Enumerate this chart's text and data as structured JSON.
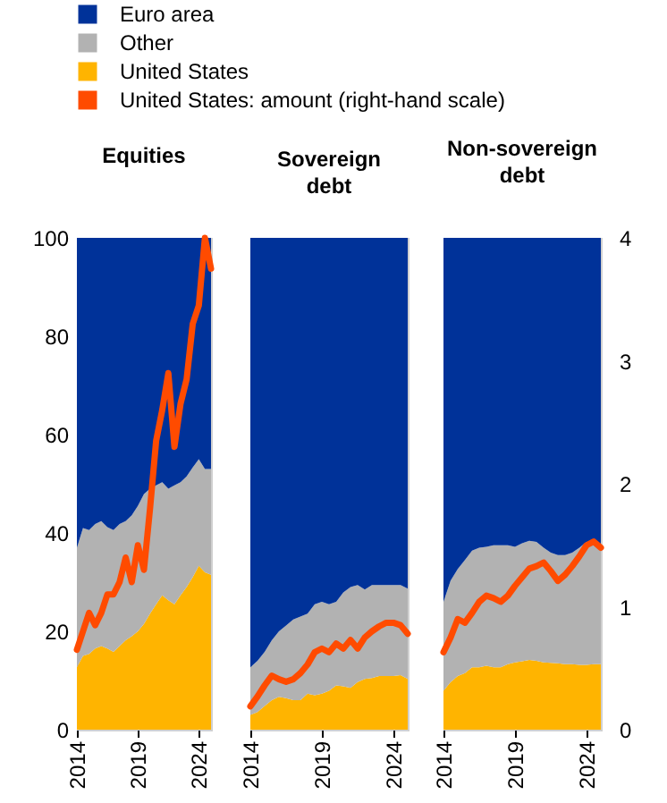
{
  "chart_data": [
    {
      "type": "area",
      "stacked": true,
      "title": "Equities",
      "legend": "top",
      "tick_labels": "xy",
      "x": [
        2014,
        2014.5,
        2015,
        2015.5,
        2016,
        2016.5,
        2017,
        2017.5,
        2018,
        2018.5,
        2019,
        2019.5,
        2020,
        2020.5,
        2021,
        2021.5,
        2022,
        2022.5,
        2023,
        2023.5,
        2024,
        2024.5,
        2025
      ],
      "xlim": [
        2014,
        2025
      ],
      "xticks": [
        2014,
        2019,
        2024
      ],
      "ylim": [
        0,
        100
      ],
      "yticks": [
        0,
        20,
        40,
        60,
        80,
        100
      ],
      "y2lim": [
        0,
        4
      ],
      "series": [
        {
          "name": "United States",
          "color": "#ffb400",
          "values": [
            12.7,
            15,
            15.4,
            16.5,
            17,
            16.5,
            15.8,
            17,
            18.2,
            19,
            20,
            21.5,
            23.6,
            25.5,
            27.3,
            26.3,
            25.5,
            27.3,
            29,
            31,
            33.3,
            32,
            31.5
          ]
        },
        {
          "name": "Other",
          "color": "#b2b2b2",
          "values": [
            24.3,
            26,
            25.2,
            25.3,
            25.4,
            24.7,
            24.8,
            24.8,
            24.2,
            24.6,
            25.5,
            26.4,
            25.4,
            24.2,
            23,
            22.7,
            24.2,
            23,
            22.5,
            22.3,
            21.7,
            21,
            21.5
          ]
        },
        {
          "name": "Euro area",
          "color": "#003299",
          "values": [
            63,
            59,
            59.4,
            58.2,
            57.6,
            58.8,
            59.4,
            58.2,
            57.6,
            56.4,
            54.5,
            52.1,
            51,
            50.3,
            49.7,
            51,
            50.3,
            49.7,
            48.5,
            46.7,
            45,
            47,
            47
          ]
        },
        {
          "name": "United States: amount (right-hand scale)",
          "type": "line",
          "axis": "y2",
          "color": "#ff4b00",
          "values": [
            0.65,
            0.8,
            0.95,
            0.85,
            0.95,
            1.1,
            1.1,
            1.2,
            1.4,
            1.2,
            1.5,
            1.3,
            1.8,
            2.35,
            2.6,
            2.9,
            2.3,
            2.65,
            2.85,
            3.3,
            3.45,
            4.0,
            3.75
          ]
        }
      ]
    },
    {
      "type": "area",
      "stacked": true,
      "title": "Sovereign debt",
      "tick_labels": "x",
      "x": [
        2014,
        2014.5,
        2015,
        2015.5,
        2016,
        2016.5,
        2017,
        2017.5,
        2018,
        2018.5,
        2019,
        2019.5,
        2020,
        2020.5,
        2021,
        2021.5,
        2022,
        2022.5,
        2023,
        2023.5,
        2024,
        2024.5,
        2025
      ],
      "xlim": [
        2014,
        2025
      ],
      "xticks": [
        2014,
        2019,
        2024
      ],
      "ylim": [
        0,
        100
      ],
      "y2lim": [
        0,
        4
      ],
      "series": [
        {
          "color": "#ffb400",
          "values": [
            3,
            3.6,
            4.8,
            6,
            6.7,
            6.4,
            6,
            6,
            7.3,
            7,
            7.3,
            7.9,
            9,
            8.8,
            8.5,
            9.7,
            10.3,
            10.5,
            10.9,
            10.9,
            10.9,
            11.1,
            10.3
          ]
        },
        {
          "color": "#b2b2b2",
          "values": [
            9.7,
            10.4,
            11,
            12.2,
            13.3,
            14.8,
            16.4,
            17,
            16.3,
            18.5,
            18.7,
            17.6,
            17,
            19.1,
            20.5,
            19.7,
            18.2,
            18.9,
            18.5,
            18.5,
            18.5,
            18.3,
            18.4
          ]
        },
        {
          "color": "#003299",
          "values": [
            87.3,
            86,
            84.2,
            81.8,
            80,
            78.8,
            77.6,
            77,
            76.4,
            74.5,
            74,
            74.5,
            74,
            72.1,
            71,
            70.6,
            71.5,
            70.6,
            70.6,
            70.6,
            70.6,
            70.6,
            71.3
          ]
        },
        {
          "type": "line",
          "axis": "y2",
          "color": "#ff4b00",
          "values": [
            0.19,
            0.27,
            0.36,
            0.44,
            0.41,
            0.39,
            0.41,
            0.46,
            0.53,
            0.63,
            0.66,
            0.63,
            0.7,
            0.66,
            0.73,
            0.66,
            0.75,
            0.8,
            0.84,
            0.87,
            0.87,
            0.85,
            0.78
          ]
        }
      ]
    },
    {
      "type": "area",
      "stacked": true,
      "title": "Non-sovereign debt",
      "tick_labels": "xy2",
      "x": [
        2014,
        2014.5,
        2015,
        2015.5,
        2016,
        2016.5,
        2017,
        2017.5,
        2018,
        2018.5,
        2019,
        2019.5,
        2020,
        2020.5,
        2021,
        2021.5,
        2022,
        2022.5,
        2023,
        2023.5,
        2024,
        2024.5,
        2025
      ],
      "xlim": [
        2014,
        2025
      ],
      "xticks": [
        2014,
        2019,
        2024
      ],
      "ylim": [
        0,
        100
      ],
      "y2lim": [
        0,
        4
      ],
      "y2ticks": [
        0,
        1,
        2,
        3,
        4
      ],
      "series": [
        {
          "color": "#ffb400",
          "values": [
            7.9,
            9.7,
            10.9,
            11.5,
            12.7,
            12.7,
            13,
            12.7,
            12.7,
            13.3,
            13.7,
            13.9,
            14.2,
            14,
            13.7,
            13.6,
            13.5,
            13.3,
            13.3,
            13.2,
            13.2,
            13.3,
            13.3
          ]
        },
        {
          "color": "#b2b2b2",
          "values": [
            18.1,
            20.6,
            21.8,
            23,
            23.7,
            24.3,
            24.2,
            24.8,
            24.8,
            24.2,
            23.5,
            24,
            24.2,
            24.2,
            23.3,
            22.4,
            22,
            22.2,
            22.7,
            23.8,
            25,
            24.3,
            23.7
          ]
        },
        {
          "color": "#003299",
          "values": [
            74,
            69.7,
            67.3,
            65.5,
            63.6,
            63,
            62.8,
            62.5,
            62.5,
            62.5,
            62.8,
            62.1,
            61.6,
            61.8,
            63,
            64,
            64.5,
            64.5,
            64,
            63,
            61.8,
            62.4,
            63
          ]
        },
        {
          "type": "line",
          "axis": "y2",
          "color": "#ff4b00",
          "values": [
            0.63,
            0.75,
            0.9,
            0.87,
            0.95,
            1.04,
            1.09,
            1.07,
            1.04,
            1.09,
            1.17,
            1.24,
            1.31,
            1.33,
            1.36,
            1.29,
            1.21,
            1.26,
            1.33,
            1.41,
            1.5,
            1.53,
            1.48
          ]
        }
      ]
    }
  ]
}
